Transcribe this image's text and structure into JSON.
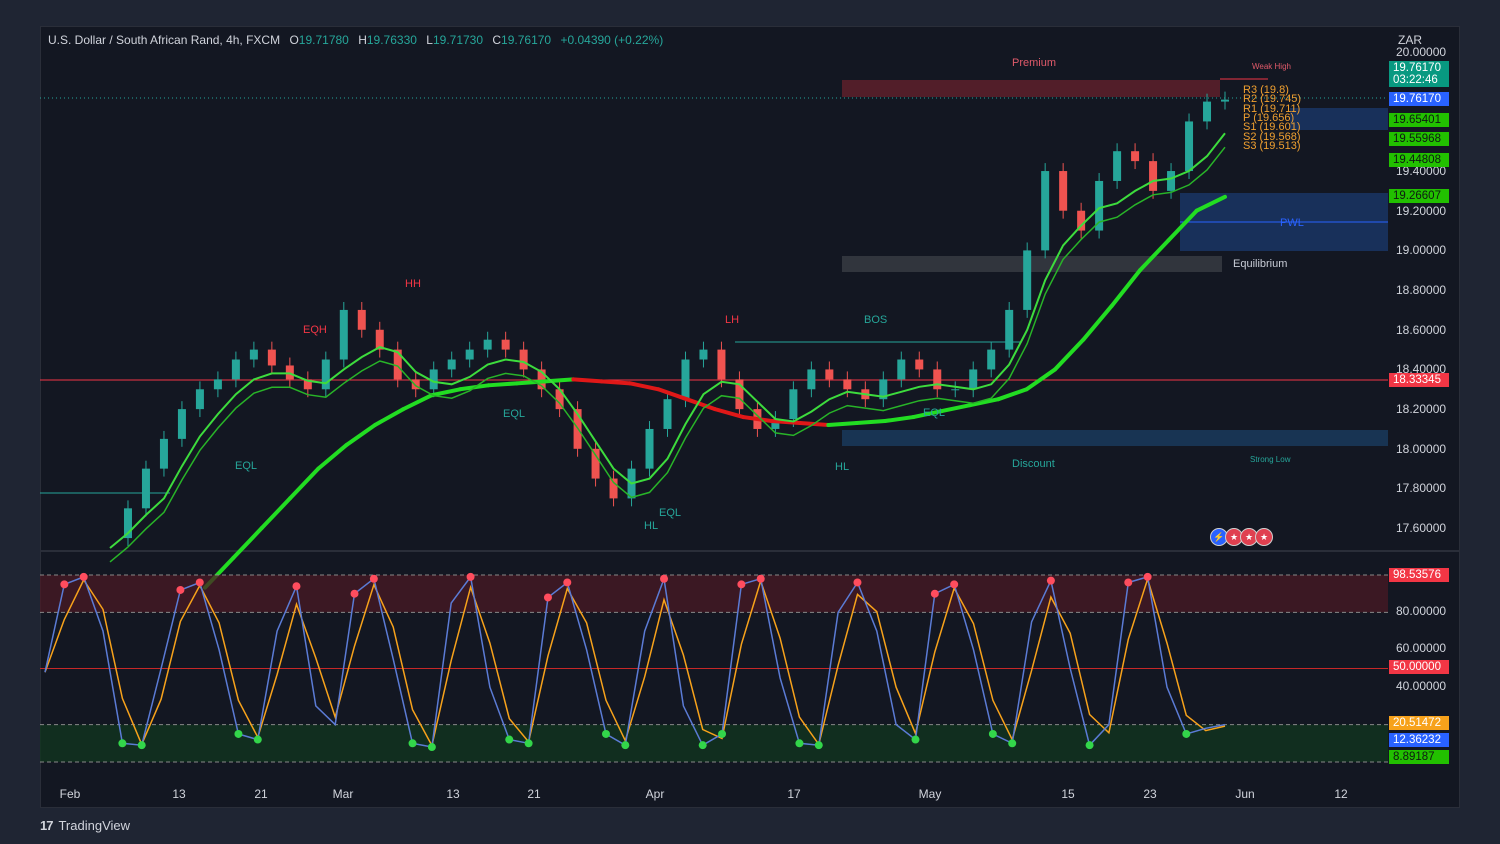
{
  "header": {
    "symbol": "U.S. Dollar / South African Rand, 4h, FXCM",
    "o_label": "O",
    "o_value": "19.71780",
    "h_label": "H",
    "h_value": "19.76330",
    "l_label": "L",
    "l_value": "19.71730",
    "c_label": "C",
    "c_value": "19.76170",
    "change": "+0.04390 (+0.22%)"
  },
  "currency": "ZAR",
  "price_axis": [
    "20.00000",
    "19.40000",
    "19.20000",
    "19.00000",
    "18.80000",
    "18.60000",
    "18.40000",
    "18.20000",
    "18.00000",
    "17.80000",
    "17.60000"
  ],
  "price_tags": [
    {
      "text": "19.76170",
      "sub": "03:22:46",
      "bg": "#089981"
    },
    {
      "text": "19.76170",
      "bg": "#2962ff"
    },
    {
      "text": "19.65401",
      "bg": "#22c000"
    },
    {
      "text": "19.55968",
      "bg": "#22c000"
    },
    {
      "text": "19.44808",
      "bg": "#22c000"
    },
    {
      "text": "19.26607",
      "bg": "#22c000"
    },
    {
      "text": "18.33345",
      "bg": "#f23645"
    }
  ],
  "osc_axis": [
    "80.00000",
    "60.00000",
    "40.00000"
  ],
  "osc_tags": [
    {
      "text": "98.53576",
      "bg": "#f23645"
    },
    {
      "text": "50.00000",
      "bg": "#f23645"
    },
    {
      "text": "20.51472",
      "bg": "#f7a21b"
    },
    {
      "text": "12.36232",
      "bg": "#2962ff"
    },
    {
      "text": "8.89187",
      "bg": "#22c000"
    }
  ],
  "x_axis": [
    "Feb",
    "13",
    "21",
    "Mar",
    "13",
    "21",
    "Apr",
    "17",
    "May",
    "15",
    "23",
    "Jun",
    "12"
  ],
  "annotations": {
    "premium": "Premium",
    "equilibrium": "Equilibrium",
    "discount": "Discount",
    "weak_high": "Weak High",
    "strong_low": "Strong Low",
    "hh": "HH",
    "eqh": "EQH",
    "lh": "LH",
    "bos_big": "BOS",
    "eql1": "EQL",
    "eql2": "EQL",
    "eql3": "EQL",
    "eql4": "EQL",
    "hl1": "HL",
    "hl2": "HL",
    "pwl": "PWL"
  },
  "pivots": [
    "R3 (19.8)",
    "R2 (19.745)",
    "R1 (19.711)",
    "P (19.656)",
    "S1 (19.601)",
    "S2 (19.568)",
    "S3 (19.513)"
  ],
  "footer": {
    "brand": "TradingView"
  },
  "colors": {
    "up": "#26a69a",
    "down": "#ef5350",
    "ema_green": "#22dd22",
    "ema_red": "#e01818",
    "premium": "#5a1f2a",
    "discount": "#1a3a5c",
    "equilibrium": "#3a3d45"
  },
  "chart_data": {
    "type": "line",
    "ylim": [
      17.5,
      20.0
    ],
    "close_series": [
      17.55,
      17.7,
      17.9,
      18.05,
      18.2,
      18.3,
      18.35,
      18.45,
      18.5,
      18.42,
      18.35,
      18.3,
      18.45,
      18.7,
      18.6,
      18.5,
      18.35,
      18.3,
      18.4,
      18.45,
      18.5,
      18.55,
      18.5,
      18.4,
      18.3,
      18.2,
      18.0,
      17.85,
      17.75,
      17.9,
      18.1,
      18.25,
      18.45,
      18.5,
      18.35,
      18.2,
      18.1,
      18.15,
      18.3,
      18.4,
      18.35,
      18.3,
      18.25,
      18.35,
      18.45,
      18.4,
      18.3,
      18.3,
      18.4,
      18.5,
      18.7,
      19.0,
      19.4,
      19.2,
      19.1,
      19.35,
      19.5,
      19.45,
      19.3,
      19.4,
      19.65,
      19.75,
      19.76
    ],
    "ema_slow": [
      17.3,
      17.45,
      17.6,
      17.75,
      17.9,
      18.02,
      18.12,
      18.2,
      18.27,
      18.3,
      18.32,
      18.33,
      18.34,
      18.35,
      18.34,
      18.33,
      18.3,
      18.25,
      18.2,
      18.16,
      18.14,
      18.13,
      18.12,
      18.13,
      18.14,
      18.16,
      18.19,
      18.22,
      18.25,
      18.3,
      18.4,
      18.55,
      18.72,
      18.9,
      19.05,
      19.2,
      19.27
    ],
    "oscillator": [
      48,
      95,
      99,
      70,
      10,
      9,
      50,
      92,
      96,
      60,
      15,
      12,
      70,
      94,
      30,
      20,
      90,
      98,
      55,
      10,
      8,
      85,
      99,
      40,
      12,
      10,
      88,
      96,
      60,
      15,
      9,
      70,
      98,
      30,
      9,
      15,
      95,
      98,
      45,
      10,
      9,
      80,
      96,
      70,
      20,
      12,
      90,
      95,
      60,
      15,
      10,
      75,
      97,
      50,
      9,
      20,
      96,
      99,
      40,
      15,
      18,
      20
    ],
    "osc_levels": {
      "upper": 80,
      "mid": 50,
      "lower": 20,
      "latest": [
        20.51472,
        12.36232,
        8.89187
      ]
    }
  }
}
